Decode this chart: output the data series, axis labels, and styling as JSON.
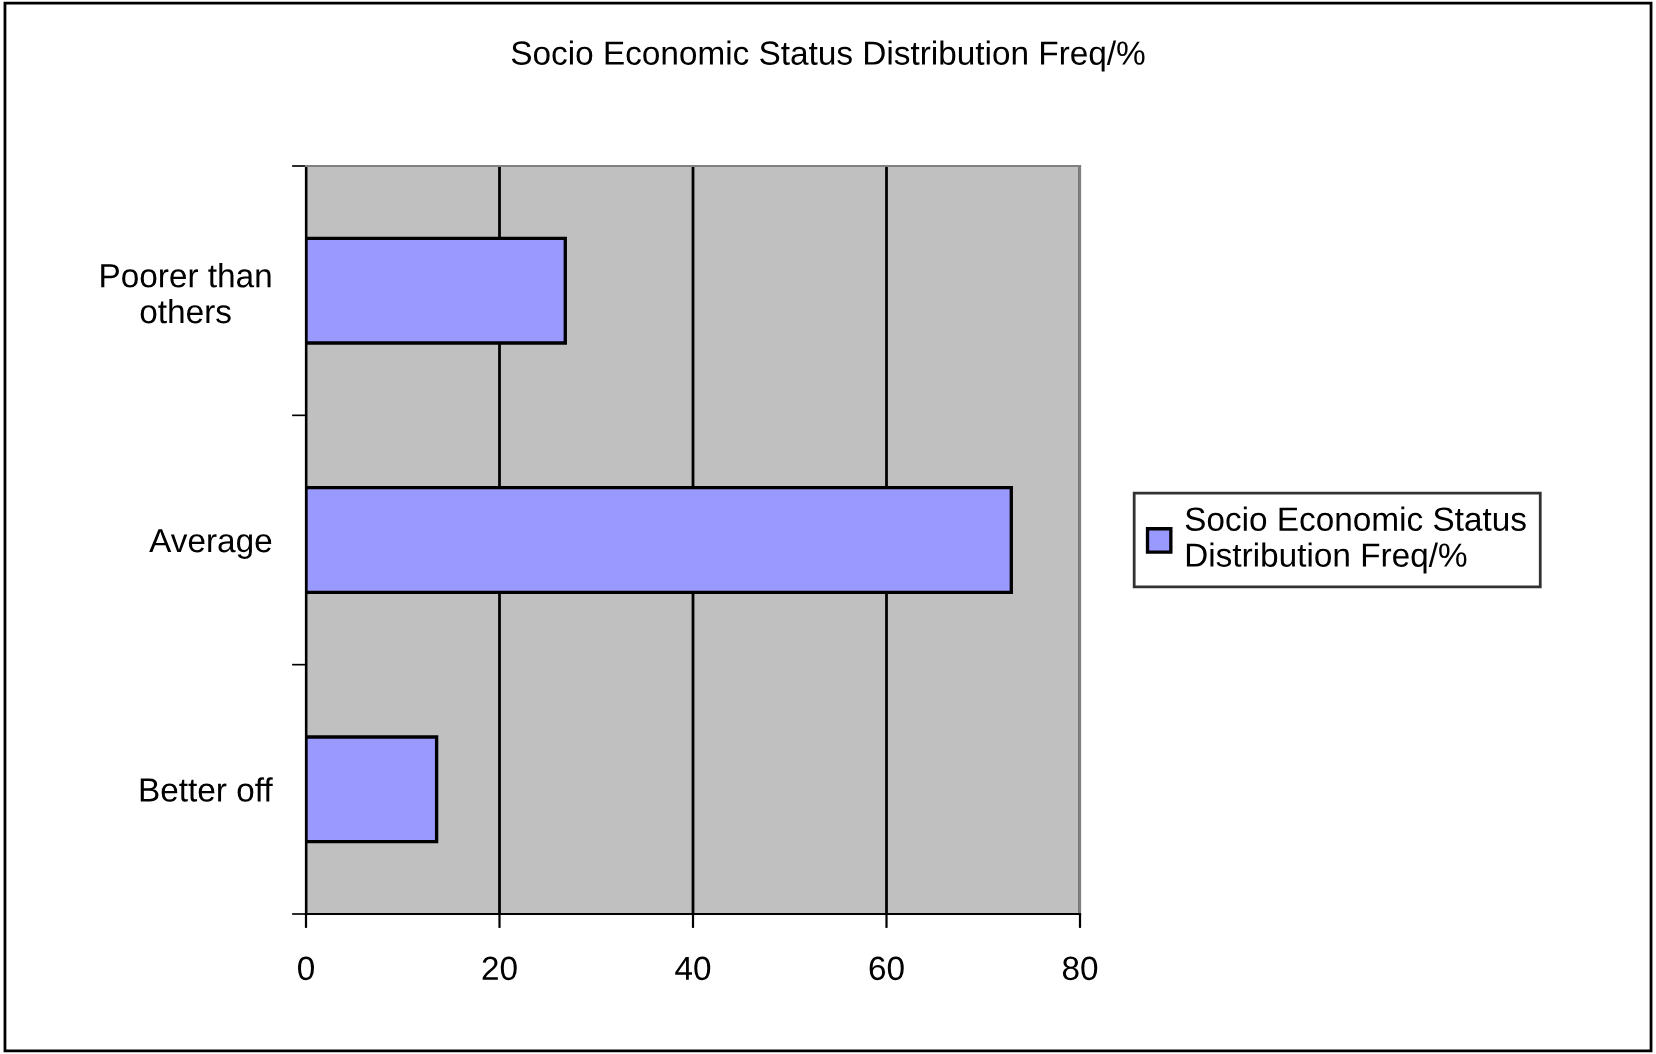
{
  "chart_data": {
    "type": "bar",
    "orientation": "horizontal",
    "title": "Socio Economic Status Distribution Freq/%",
    "categories": [
      "Poorer than others",
      "Average",
      "Better off"
    ],
    "series": [
      {
        "name": "Socio Economic Status\nDistribution Freq/%",
        "color": "#9999ff",
        "values": [
          26.8,
          72.9,
          13.5
        ]
      }
    ],
    "xlim": [
      0,
      80
    ],
    "xticks": [
      0,
      20,
      40,
      60,
      80
    ],
    "grid": "x",
    "legend": "right"
  }
}
